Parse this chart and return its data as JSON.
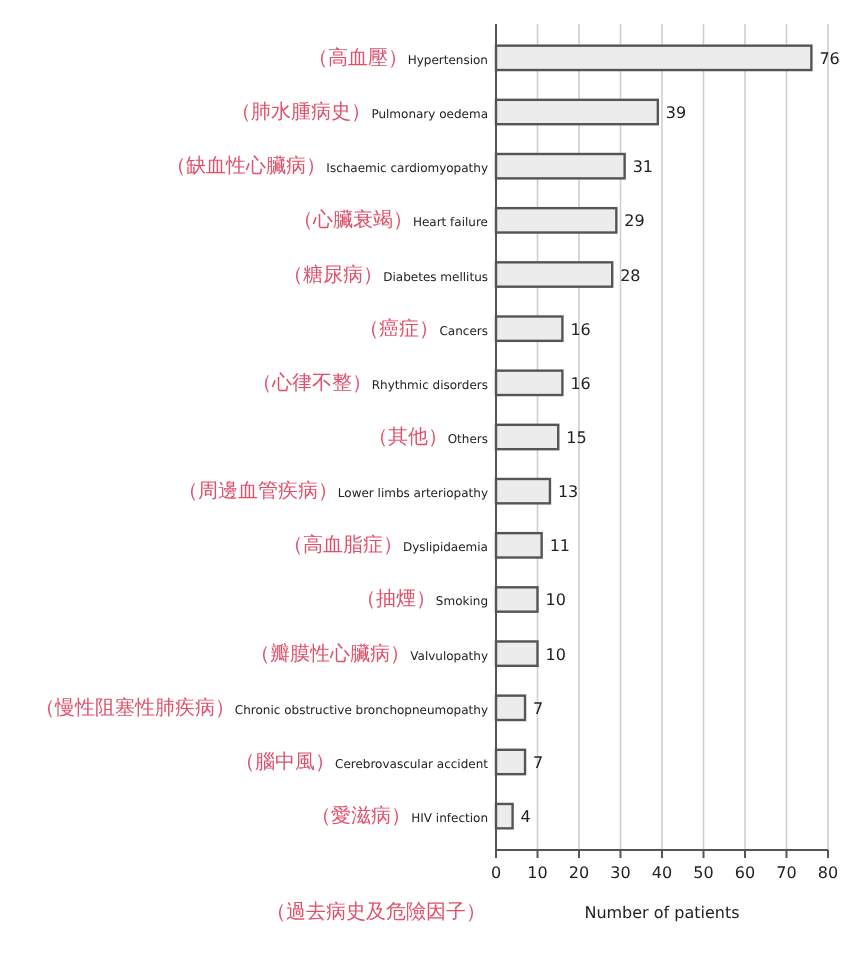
{
  "chart_data": {
    "type": "bar",
    "orientation": "horizontal",
    "xlabel": "Number of patients",
    "categories": [
      "（高血壓）Hypertension",
      "（肺水腫病史）Pulmonary oedema",
      "（缺血性心臟病）Ischaemic cardiomyopathy",
      "（心臟衰竭）Heart failure",
      "（糖尿病）Diabetes mellitus",
      "（癌症）Cancers",
      "（心律不整）Rhythmic disorders",
      "（其他）Others",
      "（周邊血管疾病）Lower limbs arteriopathy",
      "（高血脂症）Dyslipidaemia",
      "（抽煙）Smoking",
      "（瓣膜性心臟病）Valvulopathy",
      "（慢性阻塞性肺疾病）Chronic obstructive bronchopneumopathy",
      "（腦中風）Cerebrovascular accident",
      "（愛滋病）HIV infection"
    ],
    "values": [
      76,
      39,
      31,
      29,
      28,
      16,
      16,
      15,
      13,
      11,
      10,
      10,
      7,
      7,
      4
    ],
    "color": "#ececec",
    "data_labels": true,
    "grid": "x",
    "xlim": [
      0,
      80
    ],
    "xticks": [
      0,
      10,
      20,
      30,
      40,
      50,
      60,
      70,
      80
    ],
    "annotations": [
      "（過去病史及危險因子）"
    ]
  }
}
